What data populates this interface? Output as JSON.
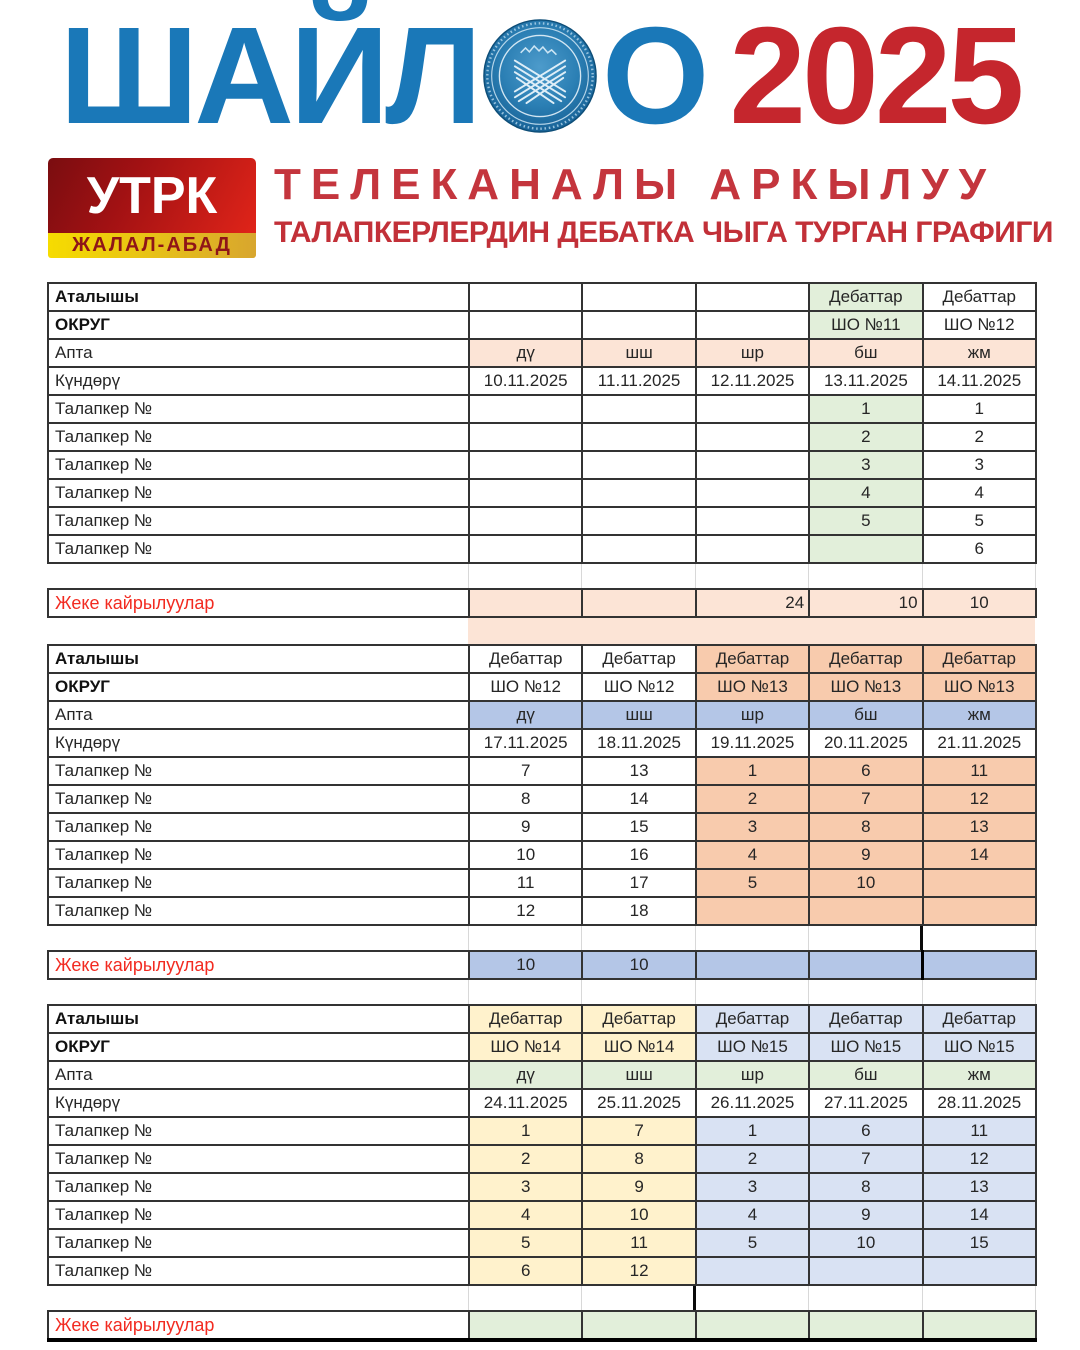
{
  "header": {
    "title_left": "ШАЙЛ",
    "title_right_o": "О",
    "year": "2025",
    "emblem_name": "kyrgyz-cec-emblem",
    "utrk": {
      "name": "УТРК",
      "region": "ЖАЛАЛ-АБАД"
    },
    "subtitle_line1": "ТЕЛЕКАНАЛЫ АРКЫЛУУ",
    "subtitle_line2": "ТАЛАПКЕРЛЕРДИН ДЕБАТКА ЧЫГА ТУРГАН ГРАФИГИ"
  },
  "colors": {
    "title_blue": "#1A78B8",
    "title_red": "#C5262D",
    "subtitle_red": "#C4353D",
    "zheke_red": "#F22B21",
    "utrk_red_dark": "#7A0D10",
    "utrk_red_bright": "#E02419",
    "utrk_yellow": "#F6DC00",
    "border_dark": "#333333"
  },
  "cell_colors": {
    "w": "#FFFFFF",
    "g": "#E2EFDA",
    "p": "#FCE4D6",
    "o": "#F8CBAD",
    "b": "#B4C6E7",
    "y": "#FFF2CC",
    "l": "#D9E2F3"
  },
  "row_labels": {
    "atalyshy": "Аталышы",
    "okrug": "ОКРУГ",
    "apta": "Апта",
    "kundoru": "Күндөрү",
    "talapker": "Талапкер №",
    "zheke": "Жеке кайрылуулар"
  },
  "week_days": [
    "дү",
    "шш",
    "шр",
    "бш",
    "жм"
  ],
  "tables": [
    {
      "debattar": [
        "",
        "",
        "",
        "Дебаттар",
        "Дебаттар"
      ],
      "okrug": [
        "",
        "",
        "",
        "ШО №11",
        "ШО №12"
      ],
      "header_bg": [
        "w",
        "w",
        "w",
        "g",
        "w"
      ],
      "apta_bg": [
        "p",
        "p",
        "p",
        "p",
        "p"
      ],
      "dates": [
        "10.11.2025",
        "11.11.2025",
        "12.11.2025",
        "13.11.2025",
        "14.11.2025"
      ],
      "data_bg": [
        "w",
        "w",
        "w",
        "g",
        "w"
      ],
      "talapker": [
        [
          "",
          "",
          "",
          "1",
          "1"
        ],
        [
          "",
          "",
          "",
          "2",
          "2"
        ],
        [
          "",
          "",
          "",
          "3",
          "3"
        ],
        [
          "",
          "",
          "",
          "4",
          "4"
        ],
        [
          "",
          "",
          "",
          "5",
          "5"
        ],
        [
          "",
          "",
          "",
          "",
          "6"
        ]
      ],
      "zheke_values": [
        "",
        "",
        "24",
        "10",
        "10"
      ],
      "zheke_bg": [
        "p",
        "p",
        "p",
        "p",
        "p"
      ],
      "zheke_align": [
        "center",
        "center",
        "right",
        "right",
        "center"
      ],
      "zheke_thick_left_col": null,
      "zheke_thick_bottom": false,
      "strip_bg": "p",
      "gap_thick_after_col": null,
      "after_gap": false
    },
    {
      "debattar": [
        "Дебаттар",
        "Дебаттар",
        "Дебаттар",
        "Дебаттар",
        "Дебаттар"
      ],
      "okrug": [
        "ШО №12",
        "ШО №12",
        "ШО №13",
        "ШО №13",
        "ШО №13"
      ],
      "header_bg": [
        "w",
        "w",
        "o",
        "o",
        "o"
      ],
      "apta_bg": [
        "b",
        "b",
        "b",
        "b",
        "b"
      ],
      "dates": [
        "17.11.2025",
        "18.11.2025",
        "19.11.2025",
        "20.11.2025",
        "21.11.2025"
      ],
      "data_bg": [
        "w",
        "w",
        "o",
        "o",
        "o"
      ],
      "talapker": [
        [
          "7",
          "13",
          "1",
          "6",
          "11"
        ],
        [
          "8",
          "14",
          "2",
          "7",
          "12"
        ],
        [
          "9",
          "15",
          "3",
          "8",
          "13"
        ],
        [
          "10",
          "16",
          "4",
          "9",
          "14"
        ],
        [
          "11",
          "17",
          "5",
          "10",
          ""
        ],
        [
          "12",
          "18",
          "",
          "",
          ""
        ]
      ],
      "zheke_values": [
        "10",
        "10",
        "",
        "",
        ""
      ],
      "zheke_bg": [
        "b",
        "b",
        "b",
        "b",
        "b"
      ],
      "zheke_align": [
        "center",
        "center",
        "center",
        "center",
        "center"
      ],
      "zheke_thick_left_col": 4,
      "zheke_thick_bottom": false,
      "strip_bg": null,
      "gap_thick_after_col": 3,
      "after_gap": true
    },
    {
      "debattar": [
        "Дебаттар",
        "Дебаттар",
        "Дебаттар",
        "Дебаттар",
        "Дебаттар"
      ],
      "okrug": [
        "ШО №14",
        "ШО №14",
        "ШО №15",
        "ШО №15",
        "ШО №15"
      ],
      "header_bg": [
        "y",
        "y",
        "l",
        "l",
        "l"
      ],
      "apta_bg": [
        "g",
        "g",
        "g",
        "g",
        "g"
      ],
      "dates": [
        "24.11.2025",
        "25.11.2025",
        "26.11.2025",
        "27.11.2025",
        "28.11.2025"
      ],
      "data_bg": [
        "y",
        "y",
        "l",
        "l",
        "l"
      ],
      "talapker": [
        [
          "1",
          "7",
          "1",
          "6",
          "11"
        ],
        [
          "2",
          "8",
          "2",
          "7",
          "12"
        ],
        [
          "3",
          "9",
          "3",
          "8",
          "13"
        ],
        [
          "4",
          "10",
          "4",
          "9",
          "14"
        ],
        [
          "5",
          "11",
          "5",
          "10",
          "15"
        ],
        [
          "6",
          "12",
          "",
          "",
          ""
        ]
      ],
      "zheke_values": [
        "",
        "",
        "",
        "",
        ""
      ],
      "zheke_bg": [
        "g",
        "g",
        "g",
        "g",
        "g"
      ],
      "zheke_align": [
        "center",
        "center",
        "center",
        "center",
        "center"
      ],
      "zheke_thick_left_col": null,
      "zheke_thick_bottom": true,
      "strip_bg": null,
      "gap_thick_after_col": 1,
      "after_gap": false
    }
  ]
}
